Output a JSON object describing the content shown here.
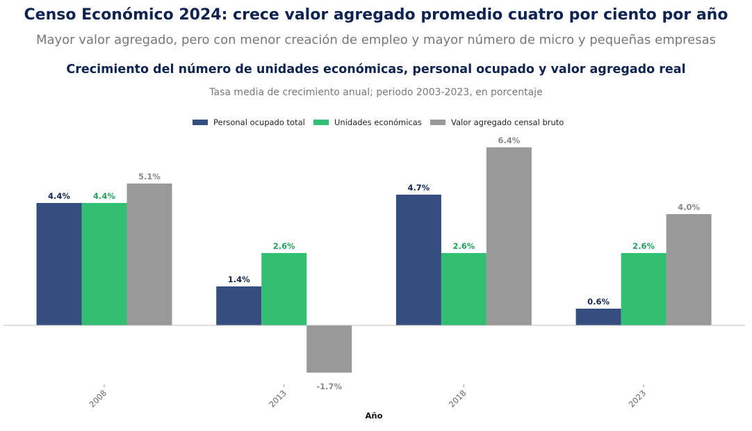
{
  "header": {
    "title": "Censo Económico 2024: crece valor agregado promedio cuatro por ciento por año",
    "subtitle": "Mayor valor agregado, pero con menor creación de empleo y mayor número de micro y pequeñas empresas"
  },
  "chart_data": {
    "type": "bar",
    "title": "Crecimiento del número de unidades económicas, personal ocupado y valor agregado real",
    "subtitle": "Tasa media de crecimiento anual; periodo 2003-2023, en porcentaje",
    "xlabel": "Año",
    "ylabel": "",
    "categories": [
      "2008",
      "2013",
      "2018",
      "2023"
    ],
    "series": [
      {
        "name": "Personal ocupado total",
        "values": [
          4.4,
          1.4,
          4.7,
          0.6
        ],
        "labels": [
          "4.4%",
          "1.4%",
          "4.7%",
          "0.6%"
        ],
        "color": "#344e80",
        "label_color": "#14264f"
      },
      {
        "name": "Unidades económicas",
        "values": [
          4.4,
          2.6,
          2.6,
          2.6
        ],
        "labels": [
          "4.4%",
          "2.6%",
          "2.6%",
          "2.6%"
        ],
        "color": "#33bf73",
        "label_color": "#22a15d"
      },
      {
        "name": "Valor agregado censal bruto",
        "values": [
          5.1,
          -1.7,
          6.4,
          4.0
        ],
        "labels": [
          "5.1%",
          "-1.7%",
          "6.4%",
          "4.0%"
        ],
        "color": "#999999",
        "label_color": "#888888"
      }
    ],
    "legend": "top-center",
    "grid": false,
    "y_axis_visible": false
  }
}
